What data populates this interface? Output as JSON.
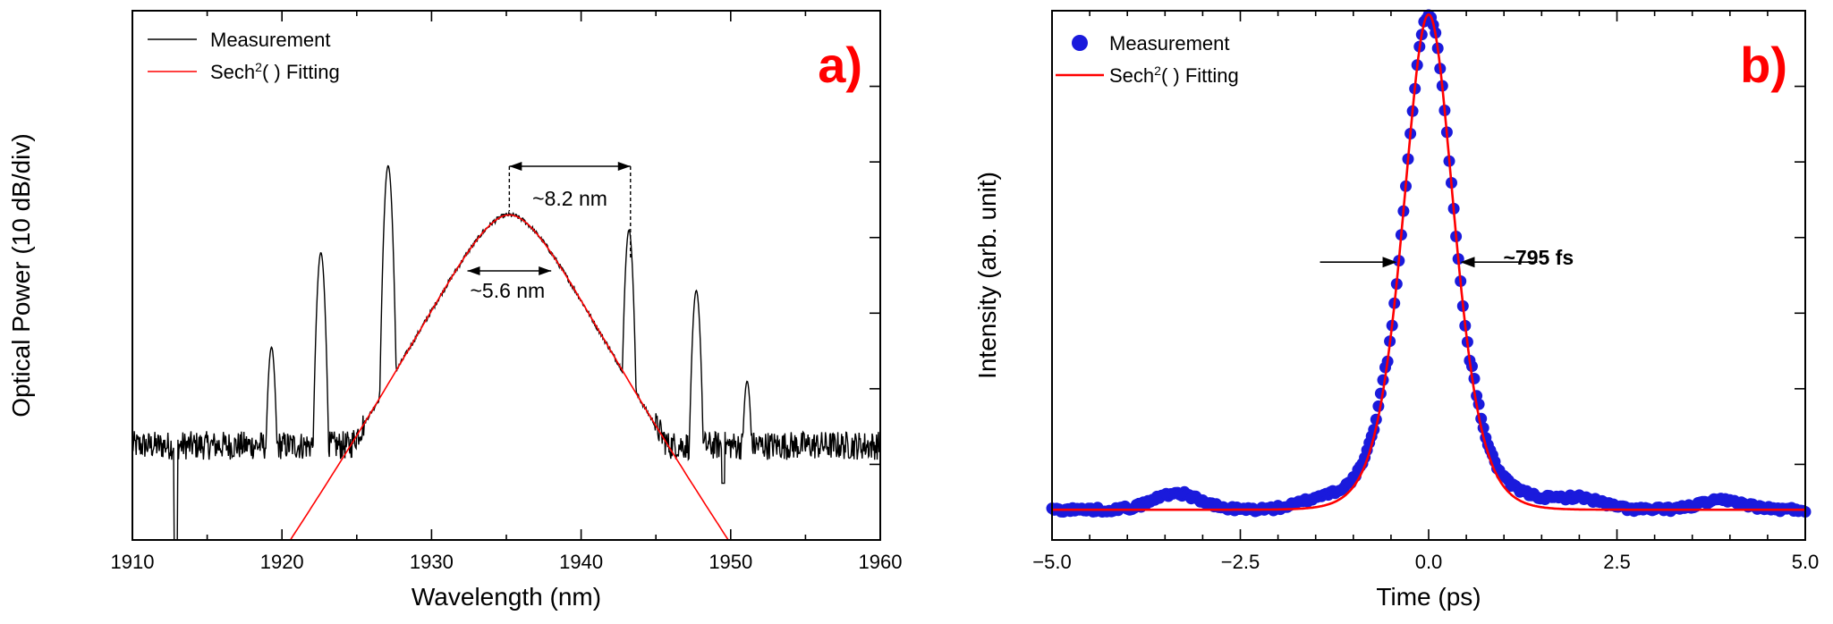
{
  "colors": {
    "measurement_a": "#000000",
    "fit": "#ff0000",
    "measurement_b": "#1a1adc",
    "panel_label": "#ff0000"
  },
  "chart_data": [
    {
      "panel": "a)",
      "type": "line",
      "xlabel": "Wavelength (nm)",
      "ylabel": "Optical Power (10 dB/div)",
      "xlim": [
        1910,
        1960
      ],
      "xticks": [
        "1910",
        "1920",
        "1930",
        "1940",
        "1950",
        "1960"
      ],
      "ylim_div": [
        0,
        7
      ],
      "y_major_divisions": 7,
      "legend": {
        "position": "top-left",
        "entries": [
          {
            "label": "Measurement",
            "base": "Measurement",
            "sup": ""
          },
          {
            "label": "Sech2( ) Fitting",
            "base": "Sech",
            "sup": "2",
            "tail": "( ) Fitting"
          }
        ]
      },
      "fit": {
        "type": "sech2",
        "center_nm": 1935.2,
        "peak_div": 4.3,
        "fwhm_nm": 5.6,
        "slope_div_per_nm": 0.296
      },
      "noise_floor_div": 1.25,
      "kelly_sidebands": [
        {
          "wavelength": 1919.3,
          "peak_div": 2.55
        },
        {
          "wavelength": 1922.6,
          "peak_div": 3.8
        },
        {
          "wavelength": 1927.1,
          "peak_div": 4.95
        },
        {
          "wavelength": 1943.2,
          "peak_div": 4.1
        },
        {
          "wavelength": 1947.7,
          "peak_div": 3.3
        },
        {
          "wavelength": 1951.1,
          "peak_div": 2.1
        }
      ],
      "annotations": {
        "width_82": {
          "text": "~8.2 nm",
          "from": 1935.2,
          "to": 1943.3
        },
        "width_56": {
          "text": "~5.6 nm",
          "from": 1932.4,
          "to": 1938.0
        }
      }
    },
    {
      "panel": "b)",
      "type": "scatter",
      "xlabel": "Time (ps)",
      "ylabel": "Intensity (arb. unit)",
      "xlim": [
        -5.0,
        5.0
      ],
      "xticks": [
        "-5.0",
        "-2.5",
        "0.0",
        "2.5",
        "5.0"
      ],
      "ylim_div": [
        0,
        7
      ],
      "y_major_divisions": 7,
      "legend": {
        "position": "top-left",
        "entries": [
          {
            "label": "Measurement",
            "base": "Measurement",
            "sup": ""
          },
          {
            "label": "Sech2( ) Fitting",
            "base": "Sech",
            "sup": "2",
            "tail": "( ) Fitting"
          }
        ]
      },
      "fit": {
        "type": "sech2",
        "center_ps": 0.0,
        "fwhm_ps": 0.795,
        "baseline_div": 0.4,
        "peak_div": 6.95
      },
      "annotation": {
        "text": "~795 fs"
      },
      "satellite_bumps": [
        {
          "t": -3.35,
          "height_div": 0.22
        },
        {
          "t": -1.4,
          "height_div": 0.12
        },
        {
          "t": 1.3,
          "height_div": 0.1
        },
        {
          "t": 2.0,
          "height_div": 0.15
        },
        {
          "t": 3.9,
          "height_div": 0.12
        }
      ]
    }
  ]
}
